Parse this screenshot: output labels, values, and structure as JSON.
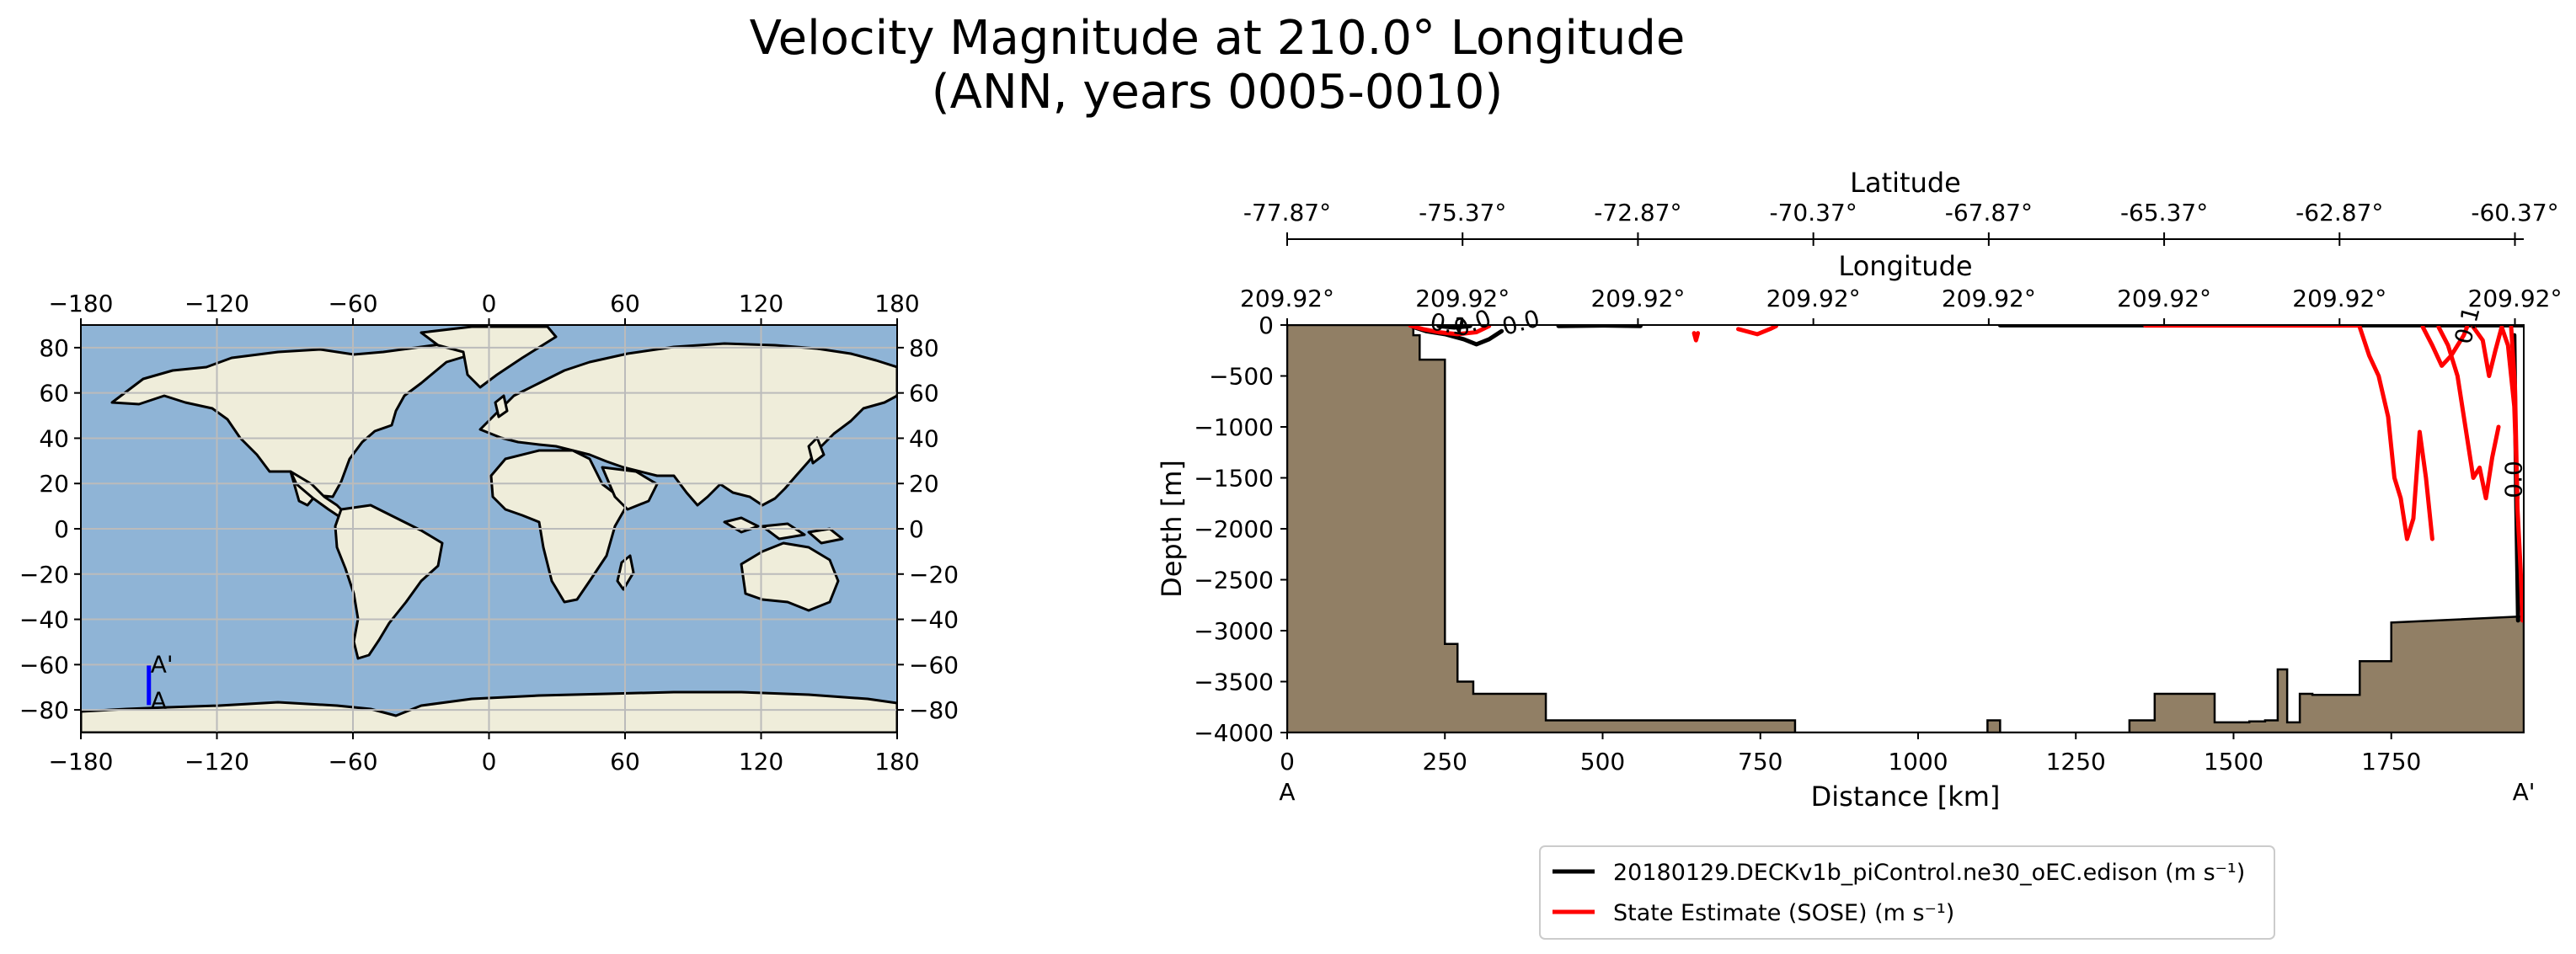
{
  "figure": {
    "title_line1": "Velocity Magnitude at 210.0° Longitude",
    "title_line2": "(ANN, years 0005-0010)"
  },
  "colors": {
    "ocean": "#8fb4d6",
    "land": "#efedda",
    "grid": "#bbbbbb",
    "section_line": "#0000ff",
    "bathymetry": "#917f65",
    "model": "#000000",
    "obs": "#ff0000"
  },
  "map": {
    "lon_ticks": [
      "−180",
      "−120",
      "−60",
      "0",
      "60",
      "120",
      "180"
    ],
    "lat_ticks": [
      "−80",
      "−60",
      "−40",
      "−20",
      "0",
      "20",
      "40",
      "60",
      "80"
    ],
    "section_start_label": "A",
    "section_end_label": "A'"
  },
  "chart_data": [
    {
      "type": "map",
      "projection": "PlateCarree",
      "xlim": [
        -180,
        180
      ],
      "ylim": [
        -90,
        90
      ],
      "grid": true,
      "xticks": [
        -180,
        -120,
        -60,
        0,
        60,
        120,
        180
      ],
      "yticks": [
        -80,
        -60,
        -40,
        -20,
        0,
        20,
        40,
        60,
        80
      ],
      "section": {
        "lon": -150,
        "lat_start": -77.87,
        "lat_end": -60.37,
        "start_label": "A",
        "end_label": "A'"
      }
    },
    {
      "type": "line",
      "xlabel": "Distance [km]",
      "ylabel": "Depth [m]",
      "xlim": [
        0,
        1960
      ],
      "ylim": [
        -4000,
        0
      ],
      "xticks": [
        0,
        250,
        500,
        750,
        1000,
        1250,
        1500,
        1750
      ],
      "xtick_labels": [
        "0",
        "250",
        "500",
        "750",
        "1000",
        "1250",
        "1500",
        "1750"
      ],
      "yticks": [
        0,
        -500,
        -1000,
        -1500,
        -2000,
        -2500,
        -3000,
        -3500,
        -4000
      ],
      "ytick_labels": [
        "0",
        "−500",
        "−1000",
        "−1500",
        "−2000",
        "−2500",
        "−3000",
        "−3500",
        "−4000"
      ],
      "start_label": "A",
      "end_label": "A'",
      "latitude_axis": {
        "label": "Latitude",
        "ticks": [
          "-77.87°",
          "-75.37°",
          "-72.87°",
          "-70.37°",
          "-67.87°",
          "-65.37°",
          "-62.87°",
          "-60.37°"
        ],
        "tick_km": [
          0,
          278,
          556,
          834,
          1112,
          1390,
          1668,
          1946
        ]
      },
      "longitude_axis": {
        "label": "Longitude",
        "ticks": [
          "209.92°",
          "209.92°",
          "209.92°",
          "209.92°",
          "209.92°",
          "209.92°",
          "209.92°",
          "209.92°"
        ],
        "tick_km": [
          0,
          278,
          556,
          834,
          1112,
          1390,
          1668,
          1946
        ]
      },
      "bathymetry_depth": {
        "x": [
          0,
          200,
          200,
          210,
          210,
          250,
          250,
          270,
          270,
          295,
          295,
          410,
          410,
          805,
          805,
          1110,
          1110,
          1130,
          1130,
          1335,
          1335,
          1375,
          1375,
          1470,
          1470,
          1525,
          1525,
          1550,
          1550,
          1570,
          1570,
          1585,
          1585,
          1605,
          1605,
          1625,
          1625,
          1700,
          1700,
          1710,
          1710,
          1750,
          1750,
          1960
        ],
        "y": [
          0,
          0,
          -100,
          -100,
          -340,
          -340,
          -3130,
          -3130,
          -3500,
          -3500,
          -3620,
          -3620,
          -3880,
          -3880,
          -4000,
          -4000,
          -3880,
          -3880,
          -4000,
          -4000,
          -3880,
          -3880,
          -3620,
          -3620,
          -3900,
          -3900,
          -3890,
          -3890,
          -3880,
          -3880,
          -3380,
          -3380,
          -3900,
          -3900,
          -3620,
          -3620,
          -3630,
          -3630,
          -3300,
          -3300,
          -3300,
          -3300,
          -2920,
          -2860
        ]
      },
      "series": [
        {
          "name": "20180129.DECKv1b_piControl.ne30_oEC.edison (m s⁻¹)",
          "color": "#000000",
          "contour_levels": [
            0.0,
            0.1
          ],
          "contour_labels": [
            "0.0",
            "0.0",
            "0.1"
          ],
          "lines": [
            {
              "x": [
                200,
                220,
                250,
                280,
                300,
                320,
                340
              ],
              "y": [
                -20,
                -60,
                -90,
                -140,
                -190,
                -140,
                -60
              ]
            },
            {
              "x": [
                240,
                265,
                290
              ],
              "y": [
                -10,
                -25,
                -10
              ]
            },
            {
              "x": [
                430,
                500,
                560
              ],
              "y": [
                -10,
                -5,
                -10
              ]
            },
            {
              "x": [
                1130,
                1600,
                1960
              ],
              "y": [
                -3,
                -3,
                -3
              ]
            },
            {
              "x": [
                1945,
                1948,
                1951
              ],
              "y": [
                -100,
                -1700,
                -2900
              ]
            }
          ]
        },
        {
          "name": "State Estimate (SOSE) (m s⁻¹)",
          "color": "#ff0000",
          "contour_levels": [
            0.0,
            0.1
          ],
          "contour_labels": [
            "0.1",
            "0.0",
            "0.1",
            "0.0"
          ],
          "lines": [
            {
              "x": [
                195,
                215,
                240,
                270,
                300,
                320
              ],
              "y": [
                -5,
                -40,
                -70,
                -90,
                -70,
                -10
              ]
            },
            {
              "x": [
                645,
                648,
                651
              ],
              "y": [
                -80,
                -150,
                -80
              ]
            },
            {
              "x": [
                715,
                745,
                765,
                775
              ],
              "y": [
                -40,
                -90,
                -40,
                -10
              ]
            },
            {
              "x": [
                1360,
                1700
              ],
              "y": [
                -5,
                -5
              ]
            },
            {
              "x": [
                1700,
                1715,
                1730,
                1745,
                1755,
                1765,
                1775,
                1785,
                1795,
                1805,
                1815
              ],
              "y": [
                -20,
                -300,
                -500,
                -900,
                -1500,
                -1700,
                -2100,
                -1900,
                -1050,
                -1500,
                -2100
              ]
            },
            {
              "x": [
                1800,
                1815,
                1830,
                1845,
                1855,
                1865,
                1870
              ],
              "y": [
                -20,
                -200,
                -400,
                -300,
                -200,
                -100,
                -20
              ]
            },
            {
              "x": [
                1825,
                1840,
                1855,
                1870,
                1880,
                1890,
                1900,
                1910,
                1920
              ],
              "y": [
                -20,
                -200,
                -500,
                -1100,
                -1500,
                -1400,
                -1700,
                -1300,
                -1000
              ]
            },
            {
              "x": [
                1880,
                1895,
                1905,
                1915,
                1925,
                1935,
                1945,
                1950
              ],
              "y": [
                -20,
                -150,
                -500,
                -250,
                -20,
                -200,
                -800,
                -1700
              ]
            },
            {
              "x": [
                1940,
                1946,
                1950,
                1955,
                1958
              ],
              "y": [
                -20,
                -600,
                -1800,
                -2400,
                -2900
              ]
            }
          ]
        }
      ]
    }
  ]
}
